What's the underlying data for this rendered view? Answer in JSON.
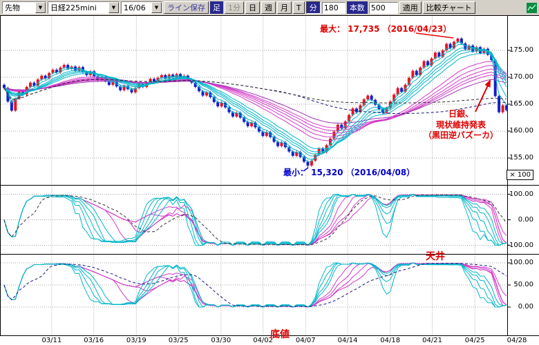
{
  "toolbar": {
    "instrument_type": "先物",
    "instrument": "日経225mini",
    "contract_month": "16/06",
    "save_line_label": "ライン保存",
    "bar_label": "足",
    "timeframe_buttons": [
      {
        "label": "1分",
        "state": "disabled"
      },
      {
        "label": "日",
        "state": "normal"
      },
      {
        "label": "週",
        "state": "normal"
      },
      {
        "label": "月",
        "state": "normal"
      },
      {
        "label": "T",
        "state": "normal"
      },
      {
        "label": "分",
        "state": "active"
      }
    ],
    "minutes_value": "180",
    "bars_label": "本数",
    "bars_value": "500",
    "apply_label": "適用",
    "compare_label": "比較チャート"
  },
  "axes": {
    "price_labels": [
      "175.00",
      "170.00",
      "165.00",
      "160.00",
      "155.00"
    ],
    "multiplier_label": "× 100",
    "panel1_labels": [
      "100.00",
      "0.00",
      "-100.00"
    ],
    "panel2_labels": [
      "100.00",
      "50.00",
      "0.00"
    ],
    "x_labels": [
      "03/11",
      "03/16",
      "03/19",
      "03/25",
      "03/30",
      "04/02",
      "04/07",
      "04/14",
      "04/18",
      "04/21",
      "04/25",
      "04/28"
    ]
  },
  "annotations": {
    "max_label": "最大： 17,735 （2016/04/23）",
    "min_label": "最小： 15,320 （2016/04/08）",
    "boj": {
      "line1": "日銀、",
      "line2": "現状維持発表",
      "line3": "（黒田逆バズーカ）"
    },
    "ceiling": "天井",
    "bottom": "底値"
  },
  "chart_data": {
    "type": "candlestick",
    "title": "日経225mini 16/06 180分足",
    "y_axis": {
      "unit_multiplier": 100,
      "tick_values": [
        175,
        170,
        165,
        160,
        155
      ]
    },
    "panel1": {
      "type": "oscillator",
      "range": [
        -100,
        100
      ],
      "tick_values": [
        100,
        0,
        -100
      ]
    },
    "panel2": {
      "type": "oscillator",
      "range": [
        0,
        100
      ],
      "tick_values": [
        100,
        50,
        0
      ]
    },
    "max_point": {
      "price": 17735,
      "date": "2016/04/23"
    },
    "min_point": {
      "price": 15320,
      "date": "2016/04/08"
    },
    "candle_colors": {
      "up": "#e8141e",
      "down": "#1022c8"
    },
    "closes": [
      168.0,
      165.5,
      163.8,
      166.0,
      167.5,
      166.8,
      168.2,
      169.0,
      168.4,
      169.6,
      170.3,
      169.8,
      170.8,
      171.4,
      170.9,
      171.8,
      172.3,
      171.6,
      172.0,
      171.2,
      171.9,
      171.0,
      170.4,
      171.1,
      170.2,
      169.5,
      170.1,
      169.3,
      168.6,
      169.2,
      168.3,
      167.6,
      168.4,
      167.8,
      167.2,
      168.0,
      168.8,
      168.2,
      169.0,
      169.7,
      169.1,
      169.9,
      170.4,
      169.8,
      170.5,
      170.0,
      170.6,
      169.9,
      170.3,
      169.6,
      169.0,
      168.2,
      167.4,
      166.6,
      167.2,
      166.3,
      165.4,
      164.6,
      165.3,
      164.4,
      163.5,
      162.7,
      163.4,
      162.5,
      161.7,
      160.9,
      161.6,
      160.7,
      159.9,
      159.1,
      159.8,
      158.9,
      158.0,
      157.2,
      157.9,
      157.0,
      156.2,
      155.4,
      156.1,
      155.2,
      154.3,
      153.6,
      154.5,
      155.6,
      156.8,
      156.1,
      157.4,
      158.6,
      159.9,
      161.2,
      160.5,
      161.8,
      163.0,
      164.2,
      163.5,
      164.8,
      165.9,
      166.6,
      165.8,
      164.9,
      164.1,
      163.4,
      164.3,
      165.5,
      166.8,
      168.0,
      167.3,
      168.6,
      169.9,
      171.2,
      170.4,
      171.8,
      173.0,
      172.2,
      173.5,
      174.6,
      173.8,
      175.0,
      176.2,
      175.4,
      176.6,
      177.2,
      176.3,
      175.2,
      175.9,
      174.8,
      175.6,
      174.5,
      175.3,
      174.2,
      173.2,
      166.5,
      163.5,
      164.8,
      163.9
    ],
    "extremes": {
      "min_index": 81,
      "min_value": 153.2,
      "max_index": 121,
      "max_value": 177.35
    },
    "indicators": {
      "main": {
        "fast": {
          "periods": [
            3,
            5,
            8,
            10,
            12,
            15
          ],
          "color": "#00b6c9"
        },
        "slow": {
          "periods": [
            25,
            30,
            35,
            40,
            45
          ],
          "color": "#d238c8"
        },
        "extra": {
          "period": 55,
          "color": "#9a30b4"
        },
        "dashed": [
          {
            "period": 70,
            "color": "#14147d"
          },
          {
            "period": 100,
            "color": "#303030"
          }
        ]
      },
      "panel1": {
        "fast": {
          "periods": [
            8,
            11,
            14,
            17,
            20
          ],
          "color": "#00b6c9"
        },
        "slow": {
          "periods": [
            26,
            32,
            38,
            44
          ],
          "color": "#d238c8"
        },
        "dashed": {
          "period": 30,
          "smooth": 8,
          "color": "#303030"
        }
      },
      "panel2": {
        "fast": {
          "periods": [
            10,
            13,
            16,
            19
          ],
          "color": "#00b6c9"
        },
        "slow": {
          "periods": [
            28,
            34,
            40,
            46
          ],
          "color": "#d238c8"
        },
        "dashed": {
          "period": 50,
          "smooth": 10,
          "color": "#14147d"
        }
      }
    }
  }
}
